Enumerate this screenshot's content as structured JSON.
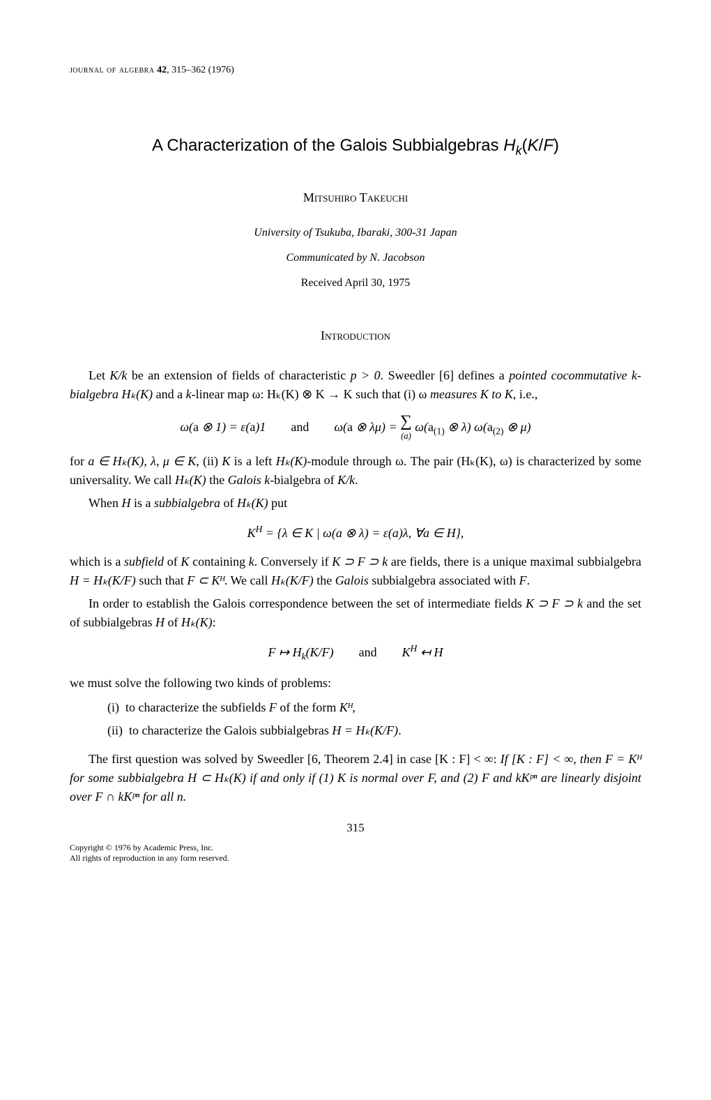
{
  "journal": {
    "name": "journal of algebra",
    "volume": "42",
    "pages": "315–362",
    "year": "(1976)"
  },
  "title": "A Characterization of the Galois Subbialgebras Hₖ(K/F)",
  "author": "Mitsuhiro Takeuchi",
  "affiliation": "University of Tsukuba, Ibaraki, 300-31 Japan",
  "communicated": "Communicated by N. Jacobson",
  "received": "Received April 30, 1975",
  "section_heading": "Introduction",
  "para1_a": "Let ",
  "para1_b": "K/k",
  "para1_c": " be an extension of fields of characteristic ",
  "para1_d": "p > 0",
  "para1_e": ". Sweedler [6] defines a ",
  "para1_f": "pointed cocommutative k-bialgebra Hₖ(K)",
  "para1_g": " and a ",
  "para1_h": "k",
  "para1_i": "-linear map ω: Hₖ(K) ⊗ K → K such that (i) ω ",
  "para1_j": "measures K to K",
  "para1_k": ", i.e.,",
  "eq1": "ω(a ⊗ 1) = ε(a)1 and ω(a ⊗ λμ) = ∑(a) ω(a(1) ⊗ λ) ω(a(2) ⊗ μ)",
  "para2_a": "for ",
  "para2_b": "a ∈ Hₖ(K), λ, μ ∈ K",
  "para2_c": ", (ii) ",
  "para2_d": "K",
  "para2_e": " is a left ",
  "para2_f": "Hₖ(K)",
  "para2_g": "-module through ω. The pair (Hₖ(K), ω) is characterized by some universality. We call ",
  "para2_h": "Hₖ(K)",
  "para2_i": " the ",
  "para2_j": "Galois k",
  "para2_k": "-bialgebra of ",
  "para2_l": "K/k",
  "para2_m": ".",
  "para3_a": "When ",
  "para3_b": "H",
  "para3_c": " is a ",
  "para3_d": "subbialgebra",
  "para3_e": " of ",
  "para3_f": "Hₖ(K)",
  "para3_g": " put",
  "eq2": "Kᴴ = {λ ∈ K | ω(a ⊗ λ) = ε(a)λ, ∀a ∈ H},",
  "para4_a": "which is a ",
  "para4_b": "subfield",
  "para4_c": " of ",
  "para4_d": "K",
  "para4_e": " containing ",
  "para4_f": "k",
  "para4_g": ". Conversely if ",
  "para4_h": "K ⊃ F ⊃ k",
  "para4_i": " are fields, there is a unique maximal subbialgebra ",
  "para4_j": "H = Hₖ(K/F)",
  "para4_k": " such that ",
  "para4_l": "F ⊂ Kᴴ",
  "para4_m": ". We call ",
  "para4_n": "Hₖ(K/F)",
  "para4_o": " the ",
  "para4_p": "Galois",
  "para4_q": " subbialgebra associated with ",
  "para4_r": "F",
  "para4_s": ".",
  "para5_a": "In order to establish the Galois correspondence between the set of intermediate fields ",
  "para5_b": "K ⊃ F ⊃ k",
  "para5_c": " and the set of subbialgebras ",
  "para5_d": "H",
  "para5_e": " of ",
  "para5_f": "Hₖ(K)",
  "para5_g": ":",
  "eq3": "F ↦ Hₖ(K/F) and Kᴴ ↤ H",
  "para6": "we must solve the following two kinds of problems:",
  "problem_i_label": "(i)",
  "problem_i_a": "to characterize the subfields ",
  "problem_i_b": "F",
  "problem_i_c": " of the form ",
  "problem_i_d": "Kᴴ",
  "problem_i_e": ",",
  "problem_ii_label": "(ii)",
  "problem_ii_a": "to characterize the Galois subbialgebras ",
  "problem_ii_b": "H = Hₖ(K/F)",
  "problem_ii_c": ".",
  "para7_a": "The first question was solved by Sweedler [6, Theorem 2.4] in case [K : F] < ∞: ",
  "para7_b": "If [K : F] < ∞, then F = Kᴴ for some subbialgebra H ⊂ Hₖ(K) if and only if (1) K is normal over F, and (2) F and kKᵖⁿ are linearly disjoint over F ∩ kKᵖⁿ for all n.",
  "page_number": "315",
  "copyright_line1": "Copyright © 1976 by Academic Press, Inc.",
  "copyright_line2": "All rights of reproduction in any form reserved."
}
